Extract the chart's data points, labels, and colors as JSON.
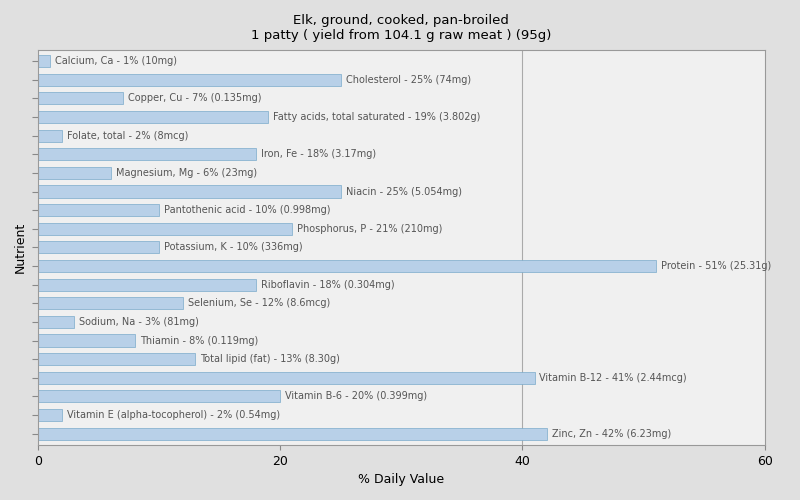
{
  "title": "Elk, ground, cooked, pan-broiled\n1 patty ( yield from 104.1 g raw meat ) (95g)",
  "xlabel": "% Daily Value",
  "ylabel": "Nutrient",
  "background_color": "#e0e0e0",
  "plot_background_color": "#f0f0f0",
  "bar_color": "#b8d0e8",
  "bar_edge_color": "#7aaaca",
  "xlim": [
    0,
    60
  ],
  "nutrients": [
    {
      "label": "Calcium, Ca - 1% (10mg)",
      "value": 1
    },
    {
      "label": "Cholesterol - 25% (74mg)",
      "value": 25
    },
    {
      "label": "Copper, Cu - 7% (0.135mg)",
      "value": 7
    },
    {
      "label": "Fatty acids, total saturated - 19% (3.802g)",
      "value": 19
    },
    {
      "label": "Folate, total - 2% (8mcg)",
      "value": 2
    },
    {
      "label": "Iron, Fe - 18% (3.17mg)",
      "value": 18
    },
    {
      "label": "Magnesium, Mg - 6% (23mg)",
      "value": 6
    },
    {
      "label": "Niacin - 25% (5.054mg)",
      "value": 25
    },
    {
      "label": "Pantothenic acid - 10% (0.998mg)",
      "value": 10
    },
    {
      "label": "Phosphorus, P - 21% (210mg)",
      "value": 21
    },
    {
      "label": "Potassium, K - 10% (336mg)",
      "value": 10
    },
    {
      "label": "Protein - 51% (25.31g)",
      "value": 51
    },
    {
      "label": "Riboflavin - 18% (0.304mg)",
      "value": 18
    },
    {
      "label": "Selenium, Se - 12% (8.6mcg)",
      "value": 12
    },
    {
      "label": "Sodium, Na - 3% (81mg)",
      "value": 3
    },
    {
      "label": "Thiamin - 8% (0.119mg)",
      "value": 8
    },
    {
      "label": "Total lipid (fat) - 13% (8.30g)",
      "value": 13
    },
    {
      "label": "Vitamin B-12 - 41% (2.44mcg)",
      "value": 41
    },
    {
      "label": "Vitamin B-6 - 20% (0.399mg)",
      "value": 20
    },
    {
      "label": "Vitamin E (alpha-tocopherol) - 2% (0.54mg)",
      "value": 2
    },
    {
      "label": "Zinc, Zn - 42% (6.23mg)",
      "value": 42
    }
  ],
  "label_color": "#555555",
  "label_fontsize": 7.0,
  "vline_x": 40,
  "vline_color": "#aaaaaa",
  "tick_color": "#888888",
  "bar_height": 0.65
}
